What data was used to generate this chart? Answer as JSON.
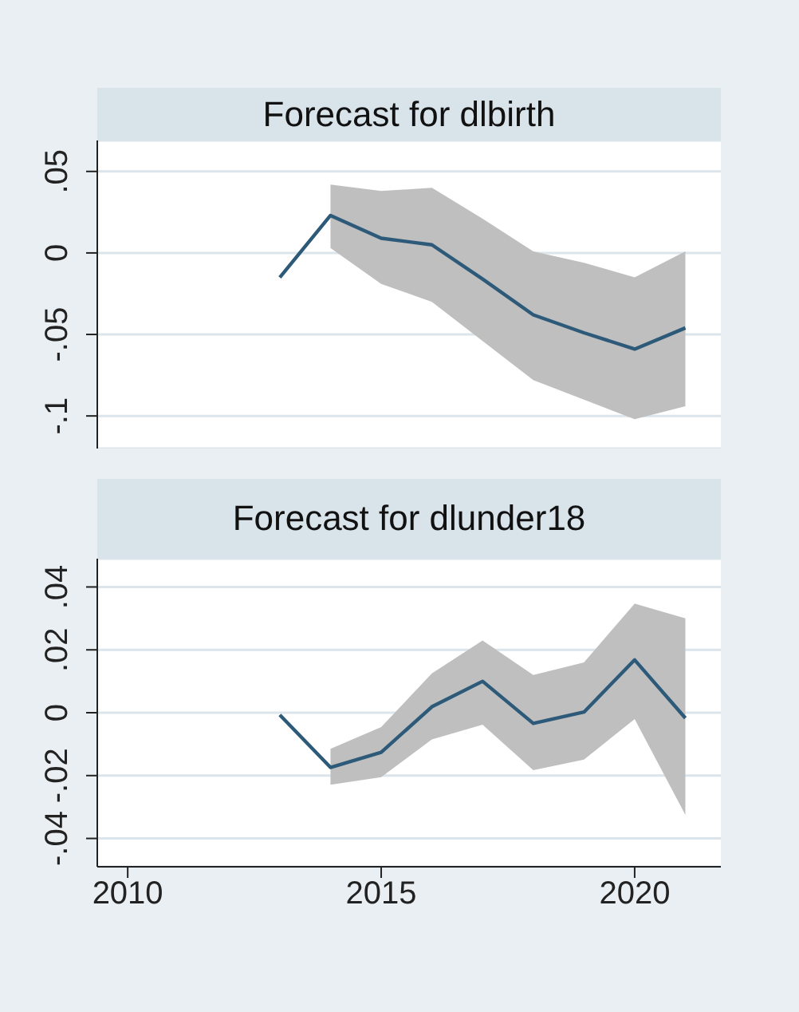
{
  "chart_data": [
    {
      "type": "line",
      "title": "Forecast for dlbirth",
      "x": [
        2013,
        2014,
        2015,
        2016,
        2017,
        2018,
        2019,
        2020,
        2021
      ],
      "series": [
        {
          "color": "#2e5a7a",
          "values": [
            -0.015,
            0.023,
            0.009,
            0.005,
            -0.016,
            -0.038,
            -0.049,
            -0.059,
            -0.046
          ],
          "lower": [
            null,
            0.003,
            -0.019,
            -0.03,
            -0.054,
            -0.078,
            -0.09,
            -0.102,
            -0.094
          ],
          "upper": [
            null,
            0.042,
            0.038,
            0.04,
            0.021,
            0.001,
            -0.006,
            -0.015,
            0.001
          ]
        }
      ],
      "xlim": [
        2009.4,
        2021.7
      ],
      "ylim": [
        -0.12,
        0.069
      ],
      "yticks": [
        {
          "value": 0.05,
          "label": ".05"
        },
        0,
        {
          "value": -0.05,
          "label": "-.05"
        },
        {
          "value": -0.1,
          "label": "-.1"
        }
      ],
      "grid": "y",
      "tick_labels": "y"
    },
    {
      "type": "line",
      "title": "Forecast for dlunder18",
      "x": [
        2013,
        2014,
        2015,
        2016,
        2017,
        2018,
        2019,
        2020,
        2021
      ],
      "series": [
        {
          "color": "#2e5a7a",
          "values": [
            -0.0007,
            -0.0174,
            -0.0126,
            0.0019,
            0.01,
            -0.0034,
            0.0002,
            0.0168,
            -0.0017
          ],
          "lower": [
            null,
            -0.0229,
            -0.0205,
            -0.0085,
            -0.0038,
            -0.0183,
            -0.0149,
            -0.002,
            -0.0325
          ],
          "upper": [
            null,
            -0.0115,
            -0.0046,
            0.0125,
            0.023,
            0.012,
            0.016,
            0.0347,
            0.03
          ]
        }
      ],
      "xlim": [
        2009.4,
        2021.7
      ],
      "xticks": [
        2010,
        2015,
        2020
      ],
      "ylim": [
        -0.049,
        0.049
      ],
      "yticks": [
        {
          "value": 0.04,
          "label": ".04"
        },
        {
          "value": 0.02,
          "label": ".02"
        },
        0,
        {
          "value": -0.02,
          "label": "-.02"
        },
        {
          "value": -0.04,
          "label": "-.04"
        }
      ],
      "grid": "y"
    }
  ]
}
